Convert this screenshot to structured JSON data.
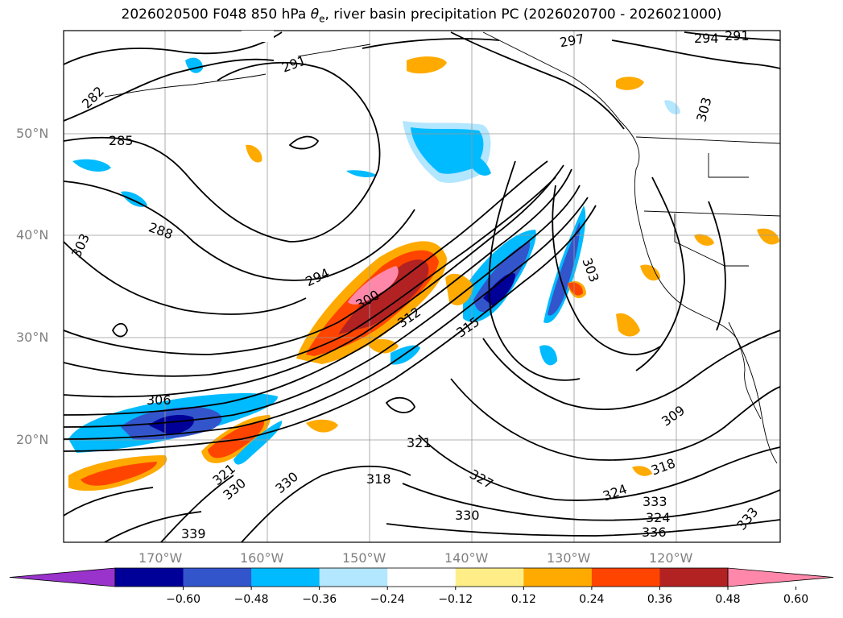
{
  "title": {
    "prefix": "2026020500 F048 850 hPa ",
    "symbol": "θ",
    "symbol_sub": "e",
    "suffix": ", river basin precipitation PC (2026020700 - 2026021000)"
  },
  "lat_labels": [
    "50°N",
    "40°N",
    "30°N",
    "20°N"
  ],
  "lon_labels": [
    "170°W",
    "160°W",
    "150°W",
    "140°W",
    "130°W",
    "120°W"
  ],
  "contour_labels": [
    "282",
    "285",
    "288",
    "291",
    "294",
    "297",
    "300",
    "303",
    "306",
    "309",
    "312",
    "315",
    "318",
    "321",
    "324",
    "327",
    "330",
    "333",
    "336",
    "339",
    "294",
    "291",
    "303",
    "303",
    "330",
    "321",
    "330",
    "318",
    "324",
    "333"
  ],
  "colorbar": {
    "ticks": [
      "−0.60",
      "−0.48",
      "−0.36",
      "−0.24",
      "−0.12",
      "0.12",
      "0.24",
      "0.36",
      "0.48",
      "0.60"
    ],
    "colors": [
      "#9933cc",
      "#000099",
      "#3355cc",
      "#00bbff",
      "#b3e6ff",
      "#ffffff",
      "#ffee88",
      "#ffaa00",
      "#ff4400",
      "#b22222",
      "#ff88aa"
    ]
  }
}
